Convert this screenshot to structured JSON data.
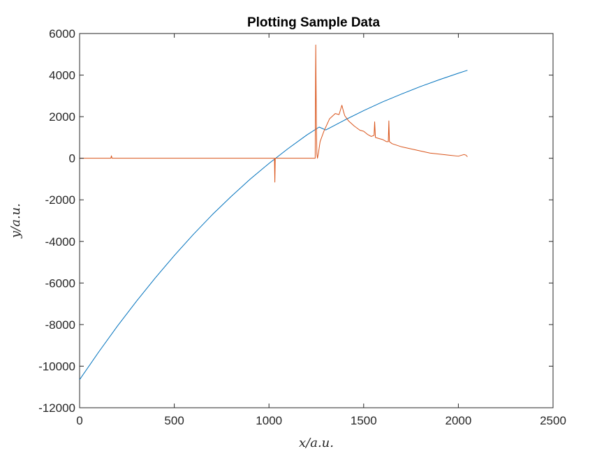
{
  "chart_data": {
    "type": "line",
    "title": "Plotting Sample Data",
    "xlabel": "x/a.u.",
    "ylabel": "y/a.u.",
    "xlim": [
      0,
      2500
    ],
    "ylim": [
      -12000,
      6000
    ],
    "xticks": [
      0,
      500,
      1000,
      1500,
      2000,
      2500
    ],
    "yticks": [
      -12000,
      -10000,
      -8000,
      -6000,
      -4000,
      -2000,
      0,
      2000,
      4000,
      6000
    ],
    "xtick_labels": [
      "0",
      "500",
      "1000",
      "1500",
      "2000",
      "2500"
    ],
    "ytick_labels": [
      "-12000",
      "-10000",
      "-8000",
      "-6000",
      "-4000",
      "-2000",
      "0",
      "2000",
      "4000",
      "6000"
    ],
    "grid": false,
    "legend": "none",
    "series": [
      {
        "color": "#0072BD",
        "x": [
          0,
          100,
          200,
          300,
          400,
          500,
          600,
          700,
          800,
          900,
          1000,
          1100,
          1200,
          1265,
          1300,
          1400,
          1500,
          1600,
          1700,
          1800,
          1900,
          2000,
          2048
        ],
        "y": [
          -10650,
          -9330,
          -8070,
          -6880,
          -5750,
          -4680,
          -3670,
          -2720,
          -1840,
          -1010,
          -250,
          460,
          1120,
          1500,
          1360,
          1840,
          2290,
          2710,
          3090,
          3450,
          3780,
          4090,
          4230
        ]
      },
      {
        "color": "#D95319",
        "x": [
          0,
          165,
          168,
          171,
          500,
          1000,
          1029,
          1031,
          1033,
          1100,
          1200,
          1244,
          1247,
          1250,
          1253,
          1256,
          1262,
          1270,
          1290,
          1320,
          1350,
          1370,
          1385,
          1392,
          1400,
          1420,
          1450,
          1480,
          1500,
          1520,
          1540,
          1555,
          1558,
          1562,
          1580,
          1600,
          1620,
          1630,
          1633,
          1636,
          1650,
          1700,
          1750,
          1800,
          1850,
          1900,
          1950,
          2000,
          2030,
          2040,
          2048
        ],
        "y": [
          0,
          0,
          120,
          0,
          0,
          0,
          0,
          -1150,
          0,
          0,
          0,
          0,
          5450,
          1800,
          200,
          0,
          300,
          800,
          1300,
          1900,
          2150,
          2100,
          2550,
          2300,
          2050,
          1800,
          1550,
          1350,
          1300,
          1150,
          1050,
          1100,
          1750,
          1000,
          950,
          900,
          800,
          800,
          1800,
          800,
          700,
          550,
          450,
          350,
          250,
          200,
          150,
          100,
          180,
          150,
          70
        ]
      }
    ]
  }
}
